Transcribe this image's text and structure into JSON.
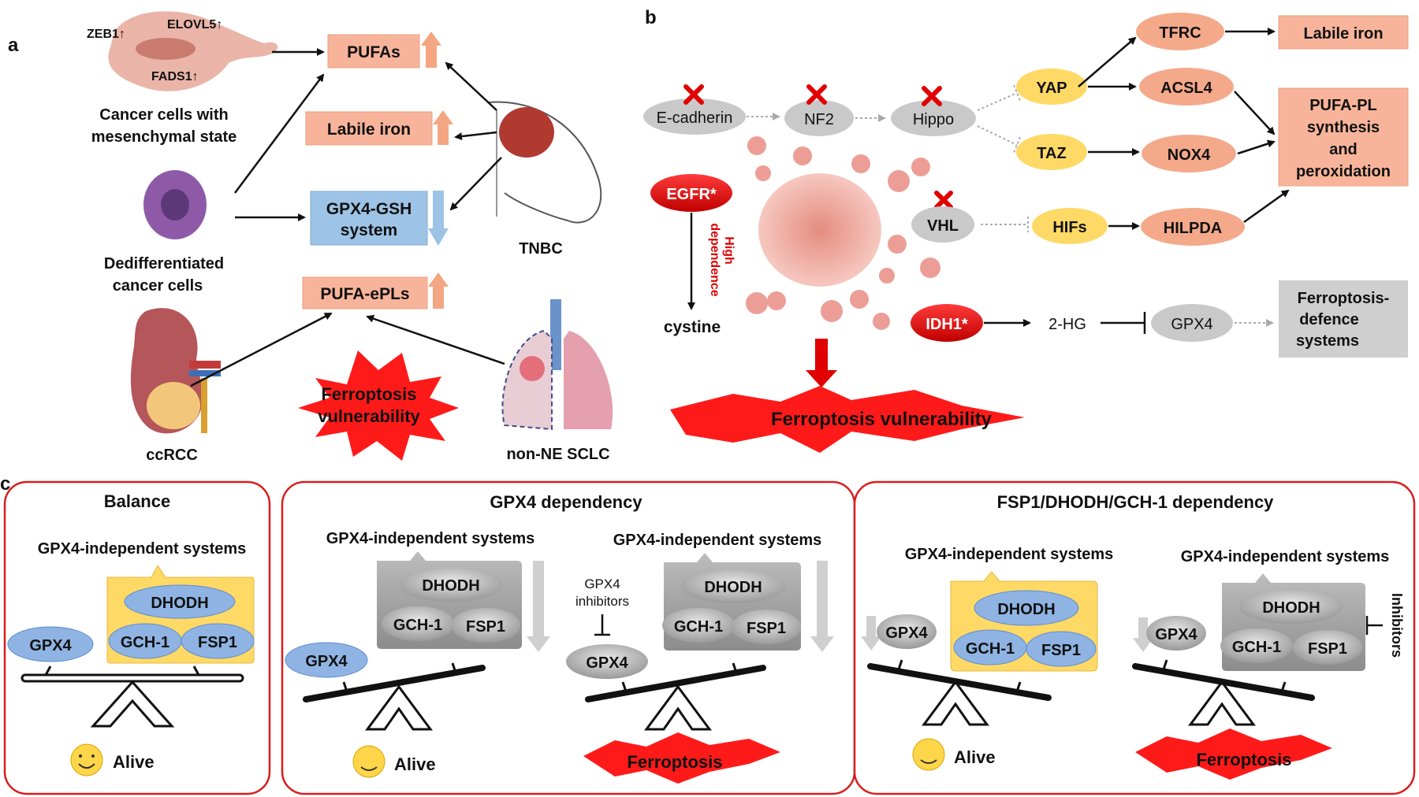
{
  "panel_a": {
    "letter": "a",
    "mesenchymal_markers": [
      "ZEB1↑",
      "ELOVL5↑",
      "FADS1↑"
    ],
    "mesenchymal_caption": [
      "Cancer cells with",
      "mesenchymal state"
    ],
    "dediff_caption": [
      "Dedifferentiated",
      "cancer cells"
    ],
    "pufas": "PUFAs",
    "labile_iron": "Labile iron",
    "gpx4_gsh": [
      "GPX4-GSH",
      "system"
    ],
    "pufa_epls": "PUFA-ePLs",
    "tnbc": "TNBC",
    "ccrcc": "ccRCC",
    "sclc": "non-NE SCLC",
    "vulnerability": [
      "Ferroptosis",
      "vulnerability"
    ]
  },
  "panel_b": {
    "letter": "b",
    "ecadherin": "E-cadherin",
    "nf2": "NF2",
    "hippo": "Hippo",
    "yap": "YAP",
    "taz": "TAZ",
    "tfrc": "TFRC",
    "acsl4": "ACSL4",
    "nox4": "NOX4",
    "labile_iron": "Labile iron",
    "pufa_pl": [
      "PUFA-PL",
      "synthesis",
      "and",
      "peroxidation"
    ],
    "egfr": "EGFR*",
    "high_dependence": [
      "High",
      "dependence"
    ],
    "cystine": "cystine",
    "vhl": "VHL",
    "hifs": "HIFs",
    "hilpda": "HILPDA",
    "idh1": "IDH1*",
    "two_hg": "2-HG",
    "gpx4": "GPX4",
    "defence": [
      "Ferroptosis-",
      "defence",
      "systems"
    ],
    "vulnerability": "Ferroptosis vulnerability"
  },
  "panel_c": {
    "letter": "c",
    "balance": {
      "title": "Balance",
      "systems_label": "GPX4-independent systems",
      "gpx4": "GPX4",
      "dhodh": "DHODH",
      "gch1": "GCH-1",
      "fsp1": "FSP1",
      "outcome": "Alive"
    },
    "gpx4_dep": {
      "title": "GPX4 dependency",
      "left": {
        "systems_label": "GPX4-independent systems",
        "gpx4": "GPX4",
        "dhodh": "DHODH",
        "gch1": "GCH-1",
        "fsp1": "FSP1",
        "outcome": "Alive"
      },
      "right": {
        "systems_label": "GPX4-independent systems",
        "inhibitor_label": [
          "GPX4",
          "inhibitors"
        ],
        "gpx4": "GPX4",
        "dhodh": "DHODH",
        "gch1": "GCH-1",
        "fsp1": "FSP1",
        "outcome": "Ferroptosis"
      }
    },
    "fsp1_dep": {
      "title": "FSP1/DHODH/GCH-1 dependency",
      "left": {
        "systems_label": "GPX4-independent systems",
        "gpx4": "GPX4",
        "dhodh": "DHODH",
        "gch1": "GCH-1",
        "fsp1": "FSP1",
        "outcome": "Alive"
      },
      "right": {
        "systems_label": "GPX4-independent systems",
        "inhibitor_label": "Inhibitors",
        "gpx4": "GPX4",
        "dhodh": "DHODH",
        "gch1": "GCH-1",
        "fsp1": "FSP1",
        "outcome": "Ferroptosis"
      }
    }
  },
  "colors": {
    "salmon_box": "#f8b49a",
    "up_arrow": "#f4a582",
    "blue_box": "#9dc3e6",
    "yellow_node": "#ffd966",
    "salmon_node": "#f4a98a",
    "grey_node": "#c9c9c9",
    "red": "#e00000",
    "blue_ellipse": "#8fb4e3"
  }
}
